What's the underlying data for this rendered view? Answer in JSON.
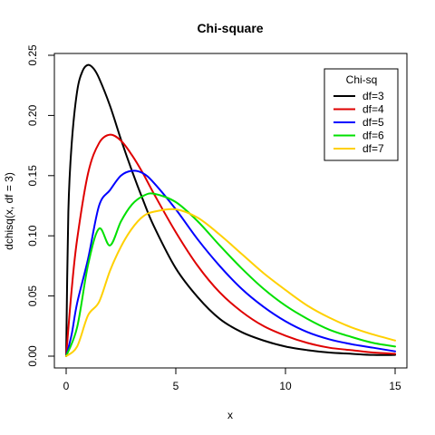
{
  "chart_data": {
    "type": "line",
    "title": "Chi-square",
    "xlabel": "x",
    "ylabel": "dchisq(x, df = 3)",
    "xlim": [
      0,
      15
    ],
    "ylim": [
      0,
      0.25
    ],
    "x_ticks": [
      0,
      5,
      10,
      15
    ],
    "x_tick_labels": [
      "0",
      "5",
      "10",
      "15"
    ],
    "y_ticks": [
      0,
      0.05,
      0.1,
      0.15,
      0.2,
      0.25
    ],
    "y_tick_labels": [
      "0.00",
      "0.05",
      "0.10",
      "0.15",
      "0.20",
      "0.25"
    ],
    "grid": false,
    "legend": {
      "title": "Chi-sq",
      "position": "top-right"
    },
    "series": [
      {
        "name": "df=3",
        "color": "#000000",
        "df": 3,
        "x": [
          0,
          0.1,
          0.25,
          0.5,
          0.75,
          1,
          1.25,
          1.5,
          2,
          2.5,
          3,
          3.5,
          4,
          5,
          6,
          7,
          8,
          9,
          10,
          11,
          12,
          13,
          14,
          15
        ],
        "y": [
          0,
          0.12,
          0.176,
          0.22,
          0.237,
          0.242,
          0.239,
          0.231,
          0.208,
          0.18,
          0.154,
          0.13,
          0.108,
          0.073,
          0.049,
          0.031,
          0.02,
          0.013,
          0.008,
          0.005,
          0.003,
          0.002,
          0.001,
          0.001
        ]
      },
      {
        "name": "df=4",
        "color": "#DF0000",
        "df": 4,
        "x": [
          0,
          0.25,
          0.5,
          1,
          1.5,
          2,
          2.5,
          3,
          3.5,
          4,
          5,
          6,
          7,
          8,
          9,
          10,
          11,
          12,
          13,
          14,
          15
        ],
        "y": [
          0,
          0.055,
          0.097,
          0.152,
          0.177,
          0.184,
          0.179,
          0.167,
          0.152,
          0.135,
          0.103,
          0.075,
          0.053,
          0.037,
          0.025,
          0.017,
          0.011,
          0.007,
          0.005,
          0.003,
          0.002
        ]
      },
      {
        "name": "df=5",
        "color": "#0000FF",
        "df": 5,
        "x": [
          0,
          0.25,
          0.5,
          1,
          1.5,
          2,
          2.5,
          3,
          3.5,
          4,
          5,
          6,
          7,
          8,
          9,
          10,
          11,
          12,
          13,
          14,
          15
        ],
        "y": [
          0,
          0.018,
          0.044,
          0.081,
          0.125,
          0.138,
          0.15,
          0.154,
          0.152,
          0.144,
          0.122,
          0.097,
          0.075,
          0.056,
          0.041,
          0.029,
          0.02,
          0.014,
          0.01,
          0.007,
          0.004
        ]
      },
      {
        "name": "df=6",
        "color": "#00E000",
        "df": 6,
        "x": [
          0,
          0.5,
          1,
          1.5,
          2,
          2.5,
          3,
          3.5,
          4,
          5,
          6,
          7,
          8,
          9,
          10,
          11,
          12,
          13,
          14,
          15
        ],
        "y": [
          0,
          0.024,
          0.076,
          0.106,
          0.092,
          0.112,
          0.126,
          0.133,
          0.135,
          0.128,
          0.112,
          0.092,
          0.073,
          0.056,
          0.042,
          0.031,
          0.022,
          0.016,
          0.011,
          0.008
        ]
      },
      {
        "name": "df=7",
        "color": "#FFD000",
        "df": 7,
        "x": [
          0,
          0.5,
          1,
          1.5,
          2,
          2.5,
          3,
          3.5,
          4,
          5,
          6,
          7,
          8,
          9,
          10,
          11,
          12,
          13,
          14,
          15
        ],
        "y": [
          0,
          0.008,
          0.034,
          0.045,
          0.071,
          0.091,
          0.106,
          0.116,
          0.12,
          0.122,
          0.115,
          0.101,
          0.085,
          0.069,
          0.055,
          0.042,
          0.032,
          0.024,
          0.018,
          0.013
        ]
      }
    ]
  }
}
